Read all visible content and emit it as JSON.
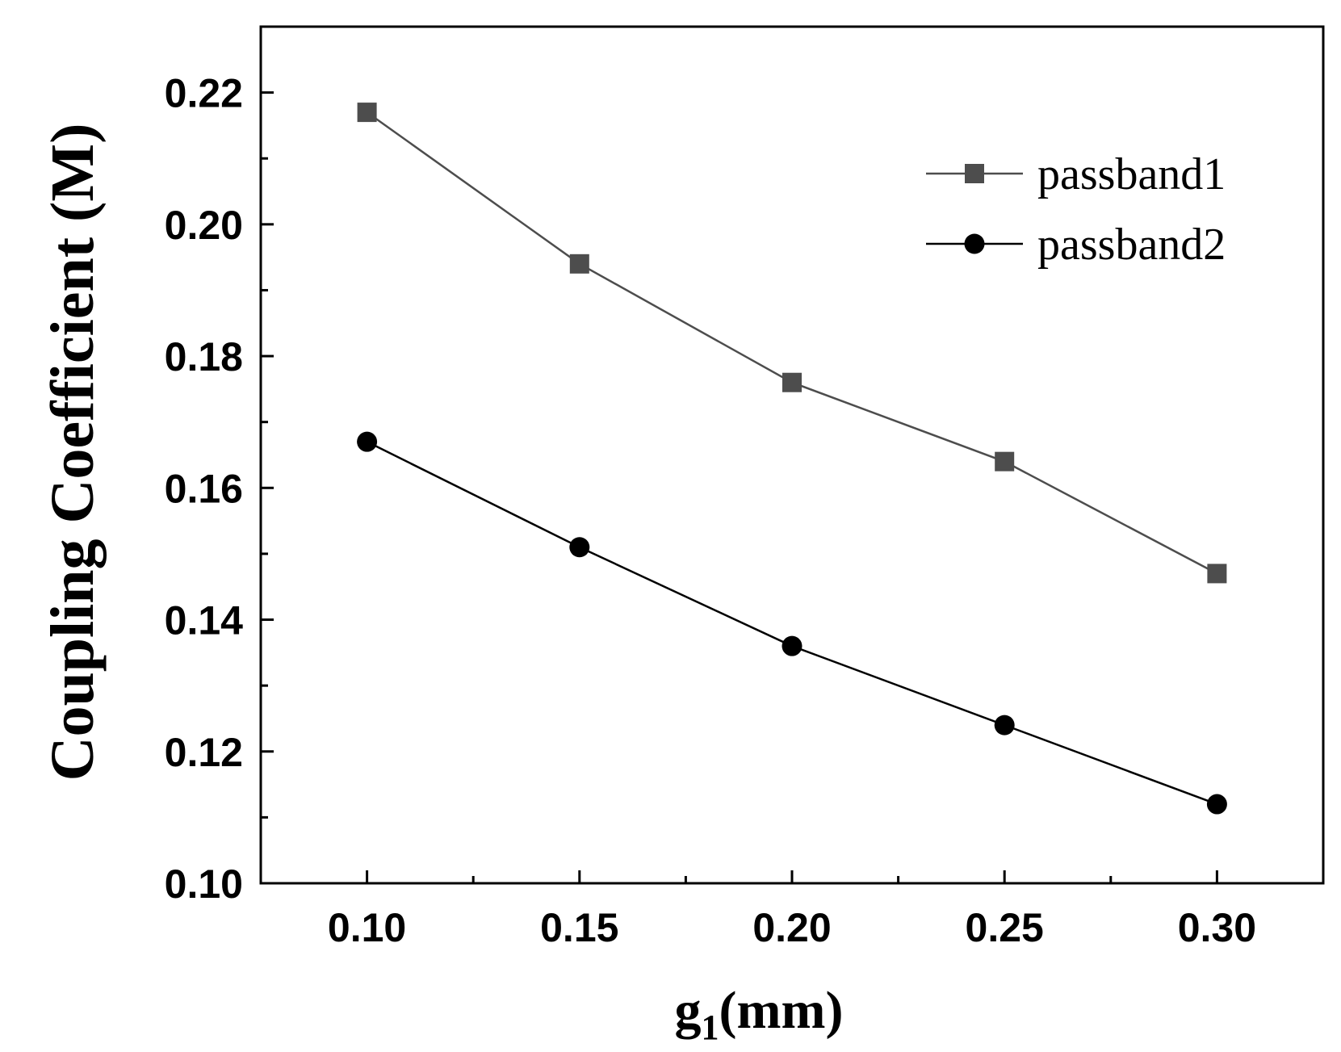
{
  "chart_data": {
    "type": "line",
    "title": "",
    "xlabel_main": "g",
    "xlabel_sub": "1",
    "xlabel_unit": "(mm)",
    "ylabel": "Coupling Coefficient (M)",
    "xlim": [
      0.075,
      0.325
    ],
    "ylim": [
      0.1,
      0.23
    ],
    "x": [
      0.1,
      0.15,
      0.2,
      0.25,
      0.3
    ],
    "x_tick_labels": [
      "0.10",
      "0.15",
      "0.20",
      "0.25",
      "0.30"
    ],
    "y_ticks": [
      0.1,
      0.12,
      0.14,
      0.16,
      0.18,
      0.2,
      0.22
    ],
    "y_tick_labels": [
      "0.10",
      "0.12",
      "0.14",
      "0.16",
      "0.18",
      "0.20",
      "0.22"
    ],
    "legend_position": "top-right",
    "grid": false,
    "series": [
      {
        "name": "passband1",
        "marker": "square",
        "color": "#4d4d4d",
        "values": [
          0.217,
          0.194,
          0.176,
          0.164,
          0.147
        ]
      },
      {
        "name": "passband2",
        "marker": "circle",
        "color": "#000000",
        "values": [
          0.167,
          0.151,
          0.136,
          0.124,
          0.112
        ]
      }
    ]
  }
}
